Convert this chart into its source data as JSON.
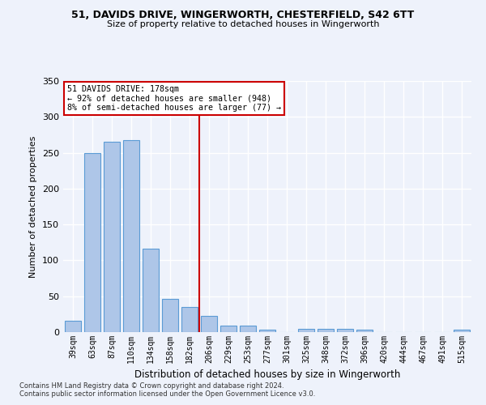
{
  "title1": "51, DAVIDS DRIVE, WINGERWORTH, CHESTERFIELD, S42 6TT",
  "title2": "Size of property relative to detached houses in Wingerworth",
  "xlabel": "Distribution of detached houses by size in Wingerworth",
  "ylabel": "Number of detached properties",
  "categories": [
    "39sqm",
    "63sqm",
    "87sqm",
    "110sqm",
    "134sqm",
    "158sqm",
    "182sqm",
    "206sqm",
    "229sqm",
    "253sqm",
    "277sqm",
    "301sqm",
    "325sqm",
    "348sqm",
    "372sqm",
    "396sqm",
    "420sqm",
    "444sqm",
    "467sqm",
    "491sqm",
    "515sqm"
  ],
  "values": [
    16,
    249,
    265,
    268,
    116,
    46,
    35,
    23,
    9,
    9,
    3,
    0,
    5,
    5,
    5,
    3,
    0,
    0,
    0,
    0,
    3
  ],
  "bar_color": "#aec6e8",
  "bar_edge_color": "#5b9bd5",
  "annotation_line1": "51 DAVIDS DRIVE: 178sqm",
  "annotation_line2": "← 92% of detached houses are smaller (948)",
  "annotation_line3": "8% of semi-detached houses are larger (77) →",
  "vline_color": "#cc0000",
  "annotation_box_color": "#cc0000",
  "background_color": "#eef2fb",
  "grid_color": "#ffffff",
  "footer1": "Contains HM Land Registry data © Crown copyright and database right 2024.",
  "footer2": "Contains public sector information licensed under the Open Government Licence v3.0.",
  "ylim": [
    0,
    350
  ],
  "yticks": [
    0,
    50,
    100,
    150,
    200,
    250,
    300,
    350
  ]
}
